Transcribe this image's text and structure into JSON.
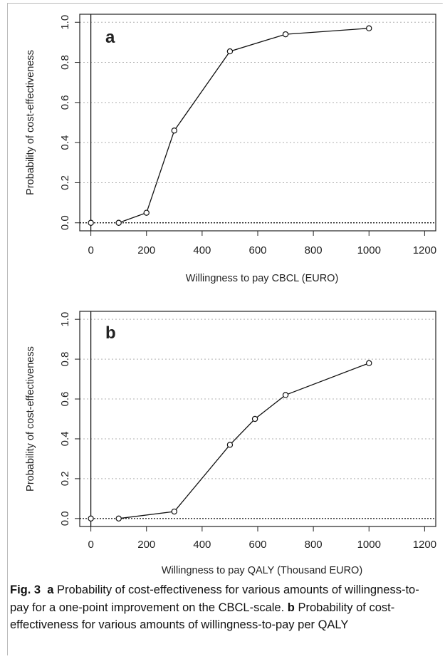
{
  "chart_data": [
    {
      "type": "line",
      "panel_letter": "a",
      "title": "",
      "xlabel": "Willingness to pay CBCL (EURO)",
      "ylabel": "Probability of cost-effectiveness",
      "xlim": [
        -40,
        1240
      ],
      "ylim": [
        -0.04,
        1.04
      ],
      "xticks": [
        0,
        200,
        400,
        600,
        800,
        1000,
        1200
      ],
      "yticks": [
        0.0,
        0.2,
        0.4,
        0.6,
        0.8,
        1.0
      ],
      "xtick_labels": [
        "0",
        "200",
        "400",
        "600",
        "800",
        "1000",
        "1200"
      ],
      "ytick_labels": [
        "0.0",
        "0.2",
        "0.4",
        "0.6",
        "0.8",
        "1.0"
      ],
      "grid": "horizontal dotted",
      "reference_lines": {
        "vertical_at_x": 0,
        "horizontal_dotted_at_y": 0
      },
      "series": [
        {
          "x": [
            0,
            100,
            200,
            300,
            500,
            700,
            1000
          ],
          "y": [
            0.0,
            0.0,
            0.05,
            0.46,
            0.855,
            0.94,
            0.97
          ],
          "line_from_index": 1
        }
      ]
    },
    {
      "type": "line",
      "panel_letter": "b",
      "title": "",
      "xlabel": "Willingness to pay QALY (Thousand EURO)",
      "ylabel": "Probability of cost-effectiveness",
      "xlim": [
        -40,
        1240
      ],
      "ylim": [
        -0.04,
        1.04
      ],
      "xticks": [
        0,
        200,
        400,
        600,
        800,
        1000,
        1200
      ],
      "yticks": [
        0.0,
        0.2,
        0.4,
        0.6,
        0.8,
        1.0
      ],
      "xtick_labels": [
        "0",
        "200",
        "400",
        "600",
        "800",
        "1000",
        "1200"
      ],
      "ytick_labels": [
        "0.0",
        "0.2",
        "0.4",
        "0.6",
        "0.8",
        "1.0"
      ],
      "grid": "horizontal dotted",
      "reference_lines": {
        "vertical_at_x": 0,
        "horizontal_dotted_at_y": 0
      },
      "series": [
        {
          "x": [
            0,
            100,
            300,
            500,
            590,
            700,
            1000
          ],
          "y": [
            0.0,
            0.0,
            0.035,
            0.37,
            0.5,
            0.62,
            0.78
          ],
          "line_from_index": 1
        }
      ]
    }
  ],
  "caption": {
    "fig_label": "Fig. 3",
    "a_letter": "a",
    "a_text": " Probability of cost-effectiveness for various amounts of willingness-to-pay for a one-point improvement on the CBCL-scale.",
    "b_letter": "b",
    "b_text": " Probability of cost-effectiveness for various amounts of willingness-to-pay per QALY"
  },
  "colors": {
    "axis": "#222222",
    "grid": "#b0b0b0",
    "line": "#111111",
    "frame": "#bbbbbb"
  }
}
